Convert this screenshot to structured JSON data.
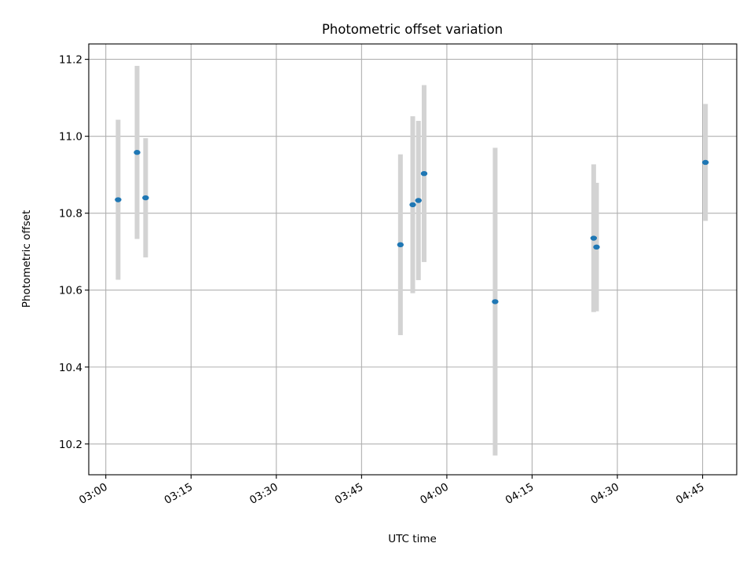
{
  "chart_data": {
    "type": "scatter",
    "title": "Photometric offset variation",
    "xlabel": "UTC time",
    "ylabel": "Photometric offset",
    "x_unit": "HH:MM",
    "xlim": [
      "02:57",
      "04:51"
    ],
    "ylim": [
      10.12,
      11.24
    ],
    "xticks": [
      "03:00",
      "03:15",
      "03:30",
      "03:45",
      "04:00",
      "04:15",
      "04:30",
      "04:45"
    ],
    "yticks": [
      10.2,
      10.4,
      10.6,
      10.8,
      11.0,
      11.2
    ],
    "grid": true,
    "legend": "none",
    "colors": {
      "point": "#1f77b4",
      "errorbar": "#d3d3d3"
    },
    "points": [
      {
        "x": "03:02:10",
        "y": 10.835,
        "yerr": 0.208
      },
      {
        "x": "03:05:30",
        "y": 10.958,
        "yerr": 0.225
      },
      {
        "x": "03:07:00",
        "y": 10.84,
        "yerr": 0.155
      },
      {
        "x": "03:51:50",
        "y": 10.718,
        "yerr": 0.235
      },
      {
        "x": "03:54:00",
        "y": 10.822,
        "yerr": 0.23
      },
      {
        "x": "03:55:00",
        "y": 10.833,
        "yerr": 0.207
      },
      {
        "x": "03:56:00",
        "y": 10.903,
        "yerr": 0.23
      },
      {
        "x": "04:08:30",
        "y": 10.57,
        "yerr": 0.4
      },
      {
        "x": "04:25:50",
        "y": 10.735,
        "yerr": 0.192
      },
      {
        "x": "04:26:20",
        "y": 10.712,
        "yerr": 0.167
      },
      {
        "x": "04:45:30",
        "y": 10.932,
        "yerr": 0.152
      }
    ]
  }
}
